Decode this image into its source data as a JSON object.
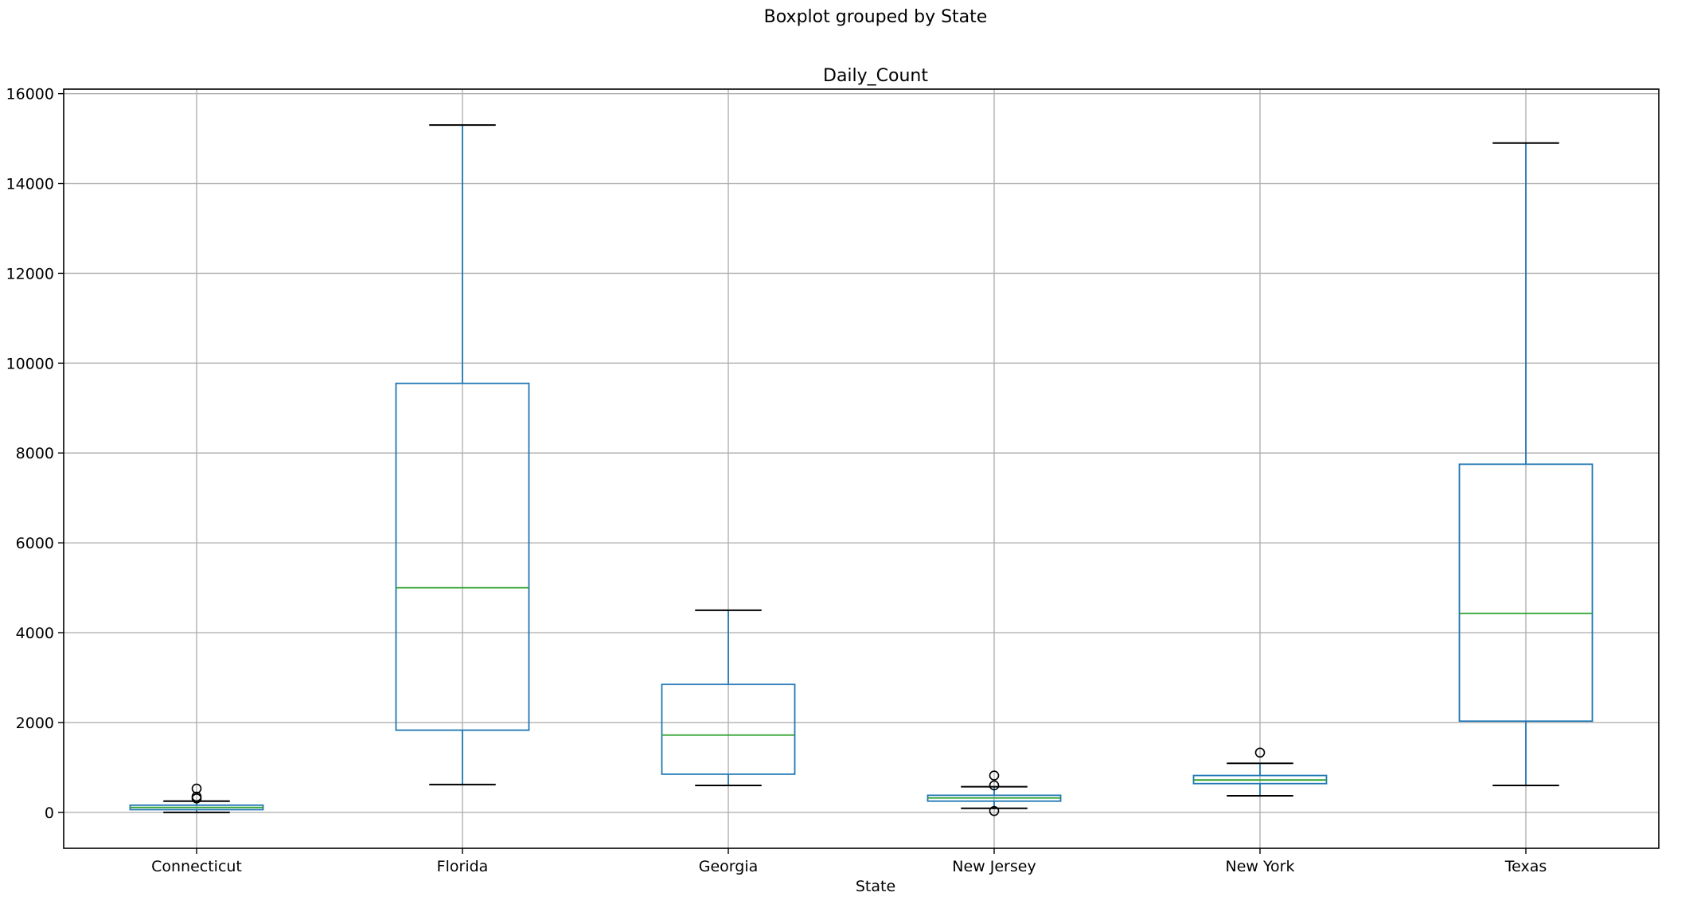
{
  "chart_data": {
    "type": "box",
    "suptitle": "Boxplot grouped by State",
    "title": "Daily_Count",
    "xlabel": "State",
    "ylabel": "",
    "ylim": [
      -800,
      16100
    ],
    "yticks": [
      0,
      2000,
      4000,
      6000,
      8000,
      10000,
      12000,
      14000,
      16000
    ],
    "grid": true,
    "colors": {
      "box": "#1f77b4",
      "median": "#2ca02c",
      "cap": "#000000",
      "flier": "#000000",
      "grid": "#b0b0b0"
    },
    "categories": [
      "Connecticut",
      "Florida",
      "Georgia",
      "New Jersey",
      "New York",
      "Texas"
    ],
    "boxes": [
      {
        "label": "Connecticut",
        "whislo": 0,
        "q1": 60,
        "med": 110,
        "q3": 160,
        "whishi": 250,
        "fliers": [
          310,
          350,
          530
        ]
      },
      {
        "label": "Florida",
        "whislo": 620,
        "q1": 1830,
        "med": 5000,
        "q3": 9550,
        "whishi": 15300,
        "fliers": []
      },
      {
        "label": "Georgia",
        "whislo": 600,
        "q1": 850,
        "med": 1720,
        "q3": 2850,
        "whishi": 4500,
        "fliers": []
      },
      {
        "label": "New Jersey",
        "whislo": 90,
        "q1": 250,
        "med": 320,
        "q3": 380,
        "whishi": 570,
        "fliers": [
          30,
          600,
          820
        ]
      },
      {
        "label": "New York",
        "whislo": 370,
        "q1": 640,
        "med": 720,
        "q3": 820,
        "whishi": 1090,
        "fliers": [
          1330
        ]
      },
      {
        "label": "Texas",
        "whislo": 600,
        "q1": 2030,
        "med": 4430,
        "q3": 7750,
        "whishi": 14900,
        "fliers": []
      }
    ]
  }
}
